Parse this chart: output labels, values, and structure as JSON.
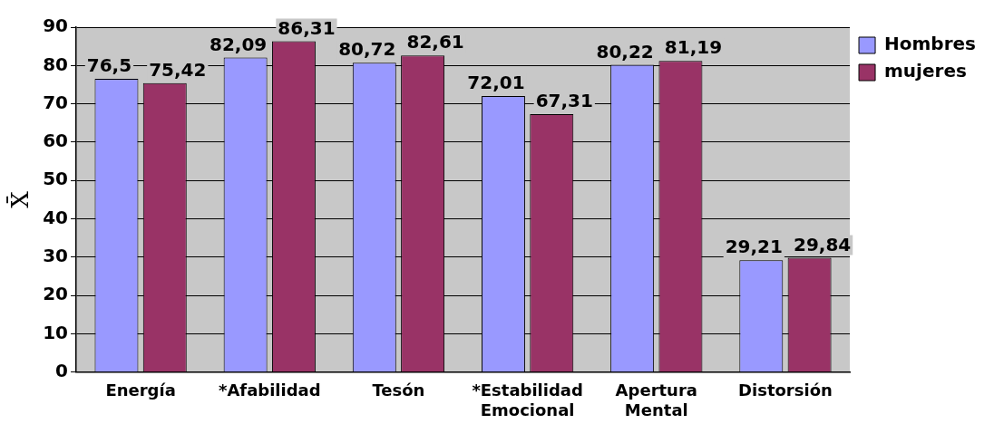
{
  "chart_data": {
    "type": "bar",
    "ylabel": "X̄",
    "categories": [
      "Energía",
      "*Afabilidad",
      "Tesón",
      "*Estabilidad Emocional",
      "Apertura Mental",
      "Distorsión"
    ],
    "series": [
      {
        "name": "Hombres",
        "color": "#9999ff",
        "values": [
          76.5,
          82.09,
          80.72,
          72.01,
          80.22,
          29.21
        ],
        "value_labels": [
          "76,5",
          "82,09",
          "80,72",
          "72,01",
          "80,22",
          "29,21"
        ]
      },
      {
        "name": "mujeres",
        "color": "#993366",
        "values": [
          75.42,
          86.31,
          82.61,
          67.31,
          81.19,
          29.84
        ],
        "value_labels": [
          "75,42",
          "86,31",
          "82,61",
          "67,31",
          "81,19",
          "29,84"
        ]
      }
    ],
    "ylim": [
      0,
      90
    ],
    "yticks": [
      0,
      10,
      20,
      30,
      40,
      50,
      60,
      70,
      80,
      90
    ],
    "grid": "y",
    "legend": "right"
  }
}
